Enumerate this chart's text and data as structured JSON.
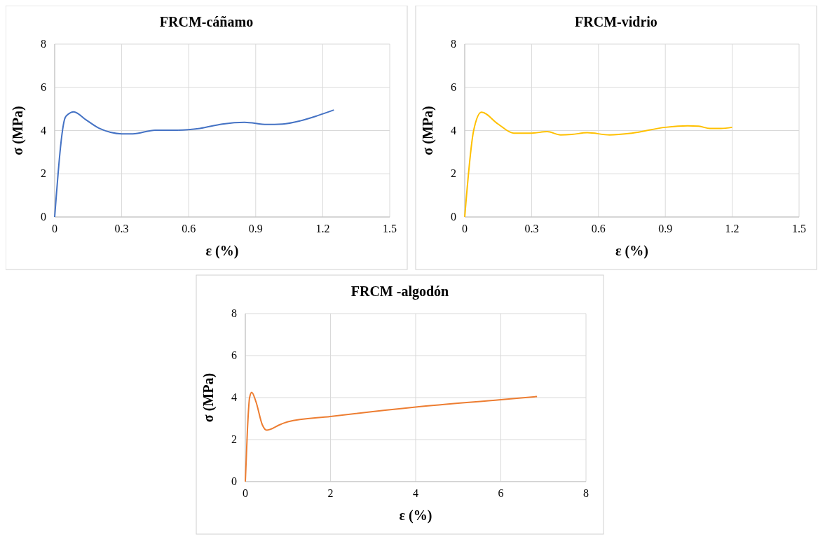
{
  "chart_data": [
    {
      "type": "line",
      "title": "FRCM-cáñamo",
      "xlabel": "ε (%)",
      "ylabel": "σ (MPa)",
      "xlim": [
        0,
        1.5
      ],
      "xticks": [
        0,
        0.3,
        0.6,
        0.9,
        1.2,
        1.5
      ],
      "ylim": [
        0,
        8
      ],
      "yticks": [
        0,
        2,
        4,
        6,
        8
      ],
      "grid": true,
      "series": [
        {
          "color": "#4472c4",
          "x": [
            0,
            0.047,
            0.06,
            0.085,
            0.14,
            0.2,
            0.25,
            0.3,
            0.35,
            0.45,
            0.55,
            0.65,
            0.75,
            0.85,
            0.95,
            1.02,
            1.1,
            1.18,
            1.25
          ],
          "values": [
            0,
            4.6,
            4.75,
            4.87,
            4.5,
            4.1,
            3.92,
            3.85,
            3.85,
            4.02,
            4.02,
            4.1,
            4.3,
            4.38,
            4.28,
            4.3,
            4.45,
            4.7,
            4.95
          ]
        }
      ]
    },
    {
      "type": "line",
      "title": "FRCM-vidrio",
      "xlabel": "ε (%)",
      "ylabel": "σ (MPa)",
      "xlim": [
        0,
        1.5
      ],
      "xticks": [
        0,
        0.3,
        0.6,
        0.9,
        1.2,
        1.5
      ],
      "ylim": [
        0,
        8
      ],
      "yticks": [
        0,
        2,
        4,
        6,
        8
      ],
      "grid": true,
      "series": [
        {
          "color": "#ffc000",
          "x": [
            0,
            0.04,
            0.075,
            0.15,
            0.22,
            0.3,
            0.37,
            0.43,
            0.48,
            0.55,
            0.65,
            0.75,
            0.9,
            1.0,
            1.05,
            1.1,
            1.15,
            1.2
          ],
          "values": [
            0,
            4.0,
            4.85,
            4.3,
            3.88,
            3.88,
            3.95,
            3.8,
            3.82,
            3.9,
            3.8,
            3.88,
            4.15,
            4.22,
            4.2,
            4.1,
            4.1,
            4.15
          ]
        }
      ]
    },
    {
      "type": "line",
      "title": "FRCM -algodón",
      "xlabel": "ε (%)",
      "ylabel": "σ (MPa)",
      "xlim": [
        0,
        8
      ],
      "xticks": [
        0,
        2,
        4,
        6,
        8
      ],
      "ylim": [
        0,
        8
      ],
      "yticks": [
        0,
        2,
        4,
        6,
        8
      ],
      "grid": true,
      "series": [
        {
          "color": "#ed7d31",
          "x": [
            0,
            0.05,
            0.1,
            0.15,
            0.25,
            0.4,
            0.5,
            0.6,
            0.8,
            1,
            2,
            4,
            6,
            6.85
          ],
          "values": [
            0,
            2.5,
            4.0,
            4.25,
            3.8,
            2.7,
            2.45,
            2.5,
            2.7,
            2.85,
            3.1,
            3.55,
            3.9,
            4.05
          ]
        }
      ]
    }
  ]
}
